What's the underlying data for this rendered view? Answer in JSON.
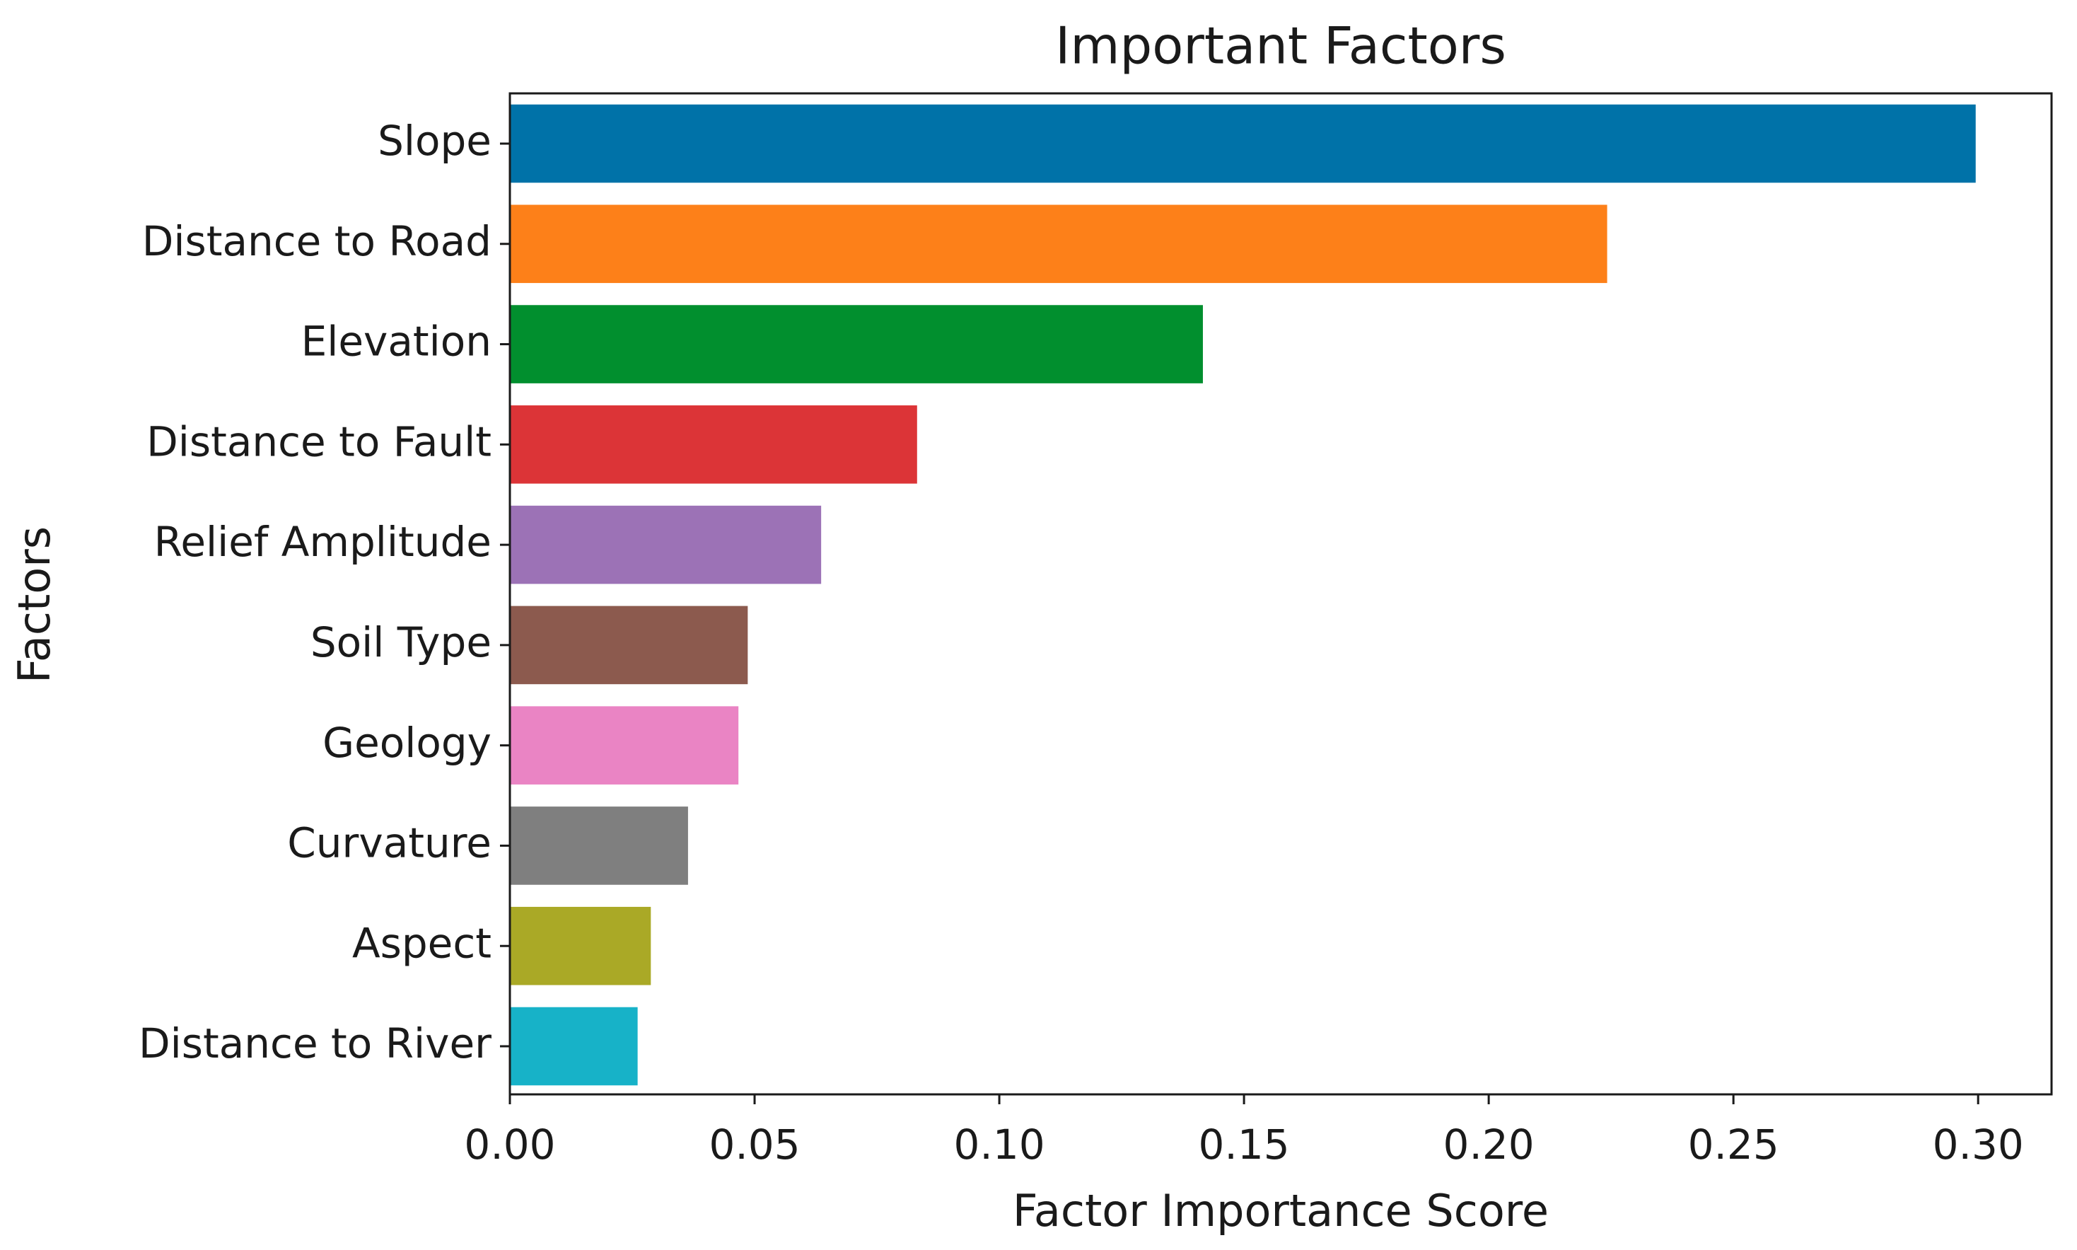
{
  "chart_data": {
    "type": "barh",
    "title": "Important Factors",
    "x_label": "Factor Importance Score",
    "y_label": "Factors",
    "categories": [
      "Slope",
      "Distance to Road",
      "Elevation",
      "Distance to Fault",
      "Relief Amplitude",
      "Soil Type",
      "Geology",
      "Curvature",
      "Aspect",
      "Distance to River"
    ],
    "values": [
      0.2995,
      0.2242,
      0.1416,
      0.0832,
      0.0636,
      0.0486,
      0.0467,
      0.0364,
      0.0288,
      0.0261
    ],
    "colors": [
      "#0072a8",
      "#fd8019",
      "#018f2e",
      "#dc3437",
      "#9c72b6",
      "#8c5a4e",
      "#ea84c4",
      "#7f7f7f",
      "#aaa926",
      "#17b2c8"
    ],
    "xlim": [
      0,
      0.315
    ],
    "xticks": [
      {
        "value": 0,
        "label": "0.00"
      },
      {
        "value": 0.05,
        "label": "0.05"
      },
      {
        "value": 0.1,
        "label": "0.10"
      },
      {
        "value": 0.15,
        "label": "0.15"
      },
      {
        "value": 0.2,
        "label": "0.20"
      },
      {
        "value": 0.25,
        "label": "0.25"
      },
      {
        "value": 0.3,
        "label": "0.30"
      }
    ],
    "grid": false
  }
}
